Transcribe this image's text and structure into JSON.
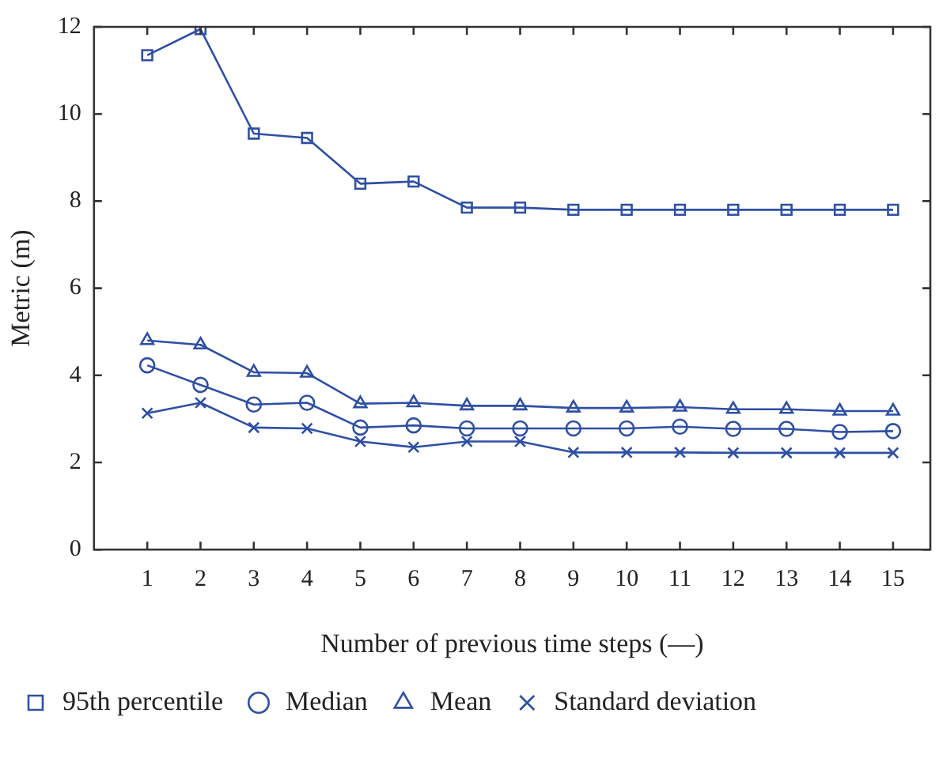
{
  "chart_data": {
    "type": "line",
    "xlabel": "Number of previous time steps (—)",
    "ylabel": "Metric (m)",
    "x": [
      1,
      2,
      3,
      4,
      5,
      6,
      7,
      8,
      9,
      10,
      11,
      12,
      13,
      14,
      15
    ],
    "xlim": [
      0,
      15.7
    ],
    "xticks": [
      1,
      2,
      3,
      4,
      5,
      6,
      7,
      8,
      9,
      10,
      11,
      12,
      13,
      14,
      15
    ],
    "ylim": [
      0,
      12
    ],
    "yticks": [
      0,
      2,
      4,
      6,
      8,
      10,
      12
    ],
    "grid": false,
    "legend": "bottom",
    "line_style": "solid",
    "series": [
      {
        "name": "95th percentile",
        "color": "#2e4fa3",
        "marker": "square",
        "values": [
          11.35,
          11.95,
          9.55,
          9.45,
          8.4,
          8.45,
          7.85,
          7.85,
          7.8,
          7.8,
          7.8,
          7.8,
          7.8,
          7.8,
          7.8
        ]
      },
      {
        "name": "Median",
        "color": "#2e4fa3",
        "marker": "circle",
        "values": [
          4.23,
          3.78,
          3.33,
          3.37,
          2.8,
          2.85,
          2.78,
          2.78,
          2.78,
          2.78,
          2.82,
          2.77,
          2.77,
          2.7,
          2.72
        ]
      },
      {
        "name": "Mean",
        "color": "#2e4fa3",
        "marker": "triangle",
        "values": [
          4.8,
          4.7,
          4.07,
          4.05,
          3.35,
          3.37,
          3.3,
          3.3,
          3.25,
          3.25,
          3.27,
          3.22,
          3.22,
          3.18,
          3.18
        ]
      },
      {
        "name": "Standard deviation",
        "color": "#2e4fa3",
        "marker": "cross",
        "values": [
          3.13,
          3.37,
          2.8,
          2.78,
          2.48,
          2.35,
          2.48,
          2.48,
          2.23,
          2.23,
          2.23,
          2.22,
          2.22,
          2.22,
          2.22
        ]
      }
    ]
  }
}
